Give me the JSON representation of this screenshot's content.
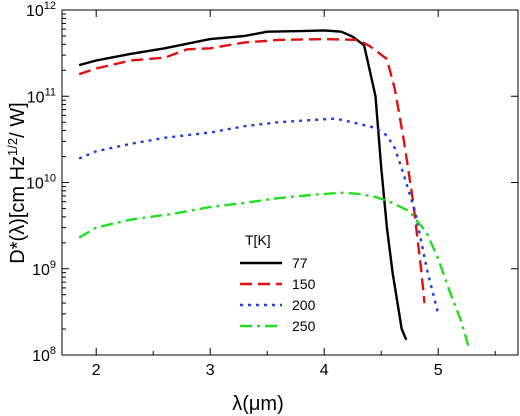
{
  "chart_data": {
    "type": "line",
    "title": "",
    "xlabel": "λ(μm)",
    "ylabel_main": "D*(λ)[cm Hz",
    "ylabel_sup": "1/2",
    "ylabel_tail": "/ W]",
    "xlim": [
      1.7,
      5.7
    ],
    "ylim": [
      100000000.0,
      1000000000000.0
    ],
    "yscale": "log",
    "x_ticks": [
      2,
      3,
      4,
      5
    ],
    "y_ticks": [
      {
        "value": 100000000.0,
        "base": "10",
        "exp": "8"
      },
      {
        "value": 1000000000.0,
        "base": "10",
        "exp": "9"
      },
      {
        "value": 10000000000.0,
        "base": "10",
        "exp": "10"
      },
      {
        "value": 100000000000.0,
        "base": "10",
        "exp": "11"
      },
      {
        "value": 1000000000000.0,
        "base": "10",
        "exp": "12"
      }
    ],
    "legend_title": "T[K]",
    "legend_position": "lower-left",
    "series": [
      {
        "name": "77",
        "color": "#000000",
        "dash": "solid",
        "points": [
          [
            1.85,
            230000000000.0
          ],
          [
            2.0,
            260000000000.0
          ],
          [
            2.3,
            310000000000.0
          ],
          [
            2.6,
            360000000000.0
          ],
          [
            3.0,
            460000000000.0
          ],
          [
            3.3,
            500000000000.0
          ],
          [
            3.5,
            560000000000.0
          ],
          [
            3.8,
            570000000000.0
          ],
          [
            4.0,
            580000000000.0
          ],
          [
            4.15,
            560000000000.0
          ],
          [
            4.25,
            490000000000.0
          ],
          [
            4.35,
            390000000000.0
          ],
          [
            4.45,
            100000000000.0
          ],
          [
            4.5,
            15000000000.0
          ],
          [
            4.55,
            3000000000.0
          ],
          [
            4.6,
            900000000.0
          ],
          [
            4.68,
            200000000.0
          ],
          [
            4.72,
            150000000.0
          ]
        ]
      },
      {
        "name": "150",
        "color": "#dd1111",
        "dash": "dashed",
        "points": [
          [
            1.85,
            180000000000.0
          ],
          [
            2.0,
            210000000000.0
          ],
          [
            2.3,
            260000000000.0
          ],
          [
            2.6,
            280000000000.0
          ],
          [
            2.8,
            350000000000.0
          ],
          [
            3.0,
            360000000000.0
          ],
          [
            3.3,
            420000000000.0
          ],
          [
            3.6,
            450000000000.0
          ],
          [
            4.0,
            460000000000.0
          ],
          [
            4.3,
            450000000000.0
          ],
          [
            4.4,
            380000000000.0
          ],
          [
            4.55,
            270000000000.0
          ],
          [
            4.62,
            120000000000.0
          ],
          [
            4.7,
            30000000000.0
          ],
          [
            4.78,
            6000000000.0
          ],
          [
            4.85,
            1000000000.0
          ],
          [
            4.88,
            400000000.0
          ]
        ]
      },
      {
        "name": "200",
        "color": "#1f3fdc",
        "dash": "dotted",
        "points": [
          [
            1.85,
            19000000000.0
          ],
          [
            2.0,
            23000000000.0
          ],
          [
            2.3,
            28000000000.0
          ],
          [
            2.6,
            33000000000.0
          ],
          [
            3.0,
            38000000000.0
          ],
          [
            3.3,
            45000000000.0
          ],
          [
            3.6,
            50000000000.0
          ],
          [
            3.9,
            53000000000.0
          ],
          [
            4.1,
            55000000000.0
          ],
          [
            4.3,
            48000000000.0
          ],
          [
            4.45,
            43000000000.0
          ],
          [
            4.55,
            35000000000.0
          ],
          [
            4.62,
            25000000000.0
          ],
          [
            4.7,
            12000000000.0
          ],
          [
            4.8,
            4500000000.0
          ],
          [
            4.9,
            1000000000.0
          ],
          [
            5.0,
            300000000.0
          ]
        ]
      },
      {
        "name": "250",
        "color": "#22dd22",
        "dash": "dashdot",
        "points": [
          [
            1.85,
            2300000000.0
          ],
          [
            2.0,
            3000000000.0
          ],
          [
            2.3,
            3700000000.0
          ],
          [
            2.7,
            4400000000.0
          ],
          [
            3.0,
            5200000000.0
          ],
          [
            3.3,
            5800000000.0
          ],
          [
            3.6,
            6600000000.0
          ],
          [
            3.9,
            7200000000.0
          ],
          [
            4.15,
            7600000000.0
          ],
          [
            4.3,
            7400000000.0
          ],
          [
            4.45,
            6800000000.0
          ],
          [
            4.6,
            5800000000.0
          ],
          [
            4.75,
            4600000000.0
          ],
          [
            4.9,
            2600000000.0
          ],
          [
            5.0,
            1300000000.0
          ],
          [
            5.1,
            550000000.0
          ],
          [
            5.2,
            250000000.0
          ],
          [
            5.27,
            120000000.0
          ]
        ]
      }
    ]
  }
}
